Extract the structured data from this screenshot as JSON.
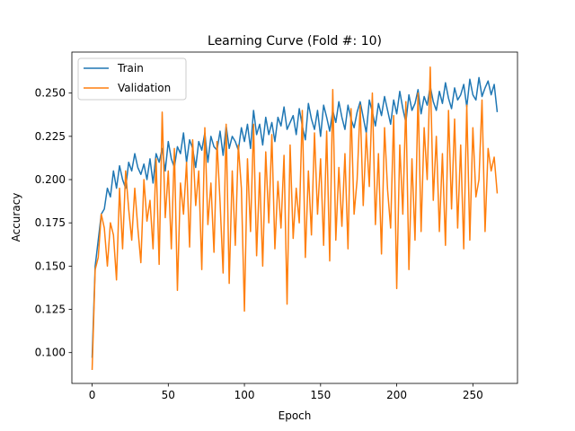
{
  "chart_data": {
    "type": "line",
    "title": "Learning Curve (Fold #: 10)",
    "xlabel": "Epoch",
    "ylabel": "Accuracy",
    "xlim": [
      -13.3,
      279.3
    ],
    "ylim": [
      0.0822,
      0.2737
    ],
    "xticks": [
      0,
      50,
      100,
      150,
      200,
      250
    ],
    "xtick_labels": [
      "0",
      "50",
      "100",
      "150",
      "200",
      "250"
    ],
    "yticks": [
      0.1,
      0.125,
      0.15,
      0.175,
      0.2,
      0.225,
      0.25
    ],
    "ytick_labels": [
      "0.100",
      "0.125",
      "0.150",
      "0.175",
      "0.200",
      "0.225",
      "0.250"
    ],
    "grid": false,
    "legend_position": "top-left",
    "series": [
      {
        "name": "Train",
        "color": "#1f77b4",
        "x": [
          0,
          2,
          4,
          6,
          8,
          10,
          12,
          14,
          16,
          18,
          20,
          22,
          24,
          26,
          28,
          30,
          32,
          34,
          36,
          38,
          40,
          42,
          44,
          46,
          48,
          50,
          52,
          54,
          56,
          58,
          60,
          62,
          64,
          66,
          68,
          70,
          72,
          74,
          76,
          78,
          80,
          82,
          84,
          86,
          88,
          90,
          92,
          94,
          96,
          98,
          100,
          102,
          104,
          106,
          108,
          110,
          112,
          114,
          116,
          118,
          120,
          122,
          124,
          126,
          128,
          130,
          132,
          134,
          136,
          138,
          140,
          142,
          144,
          146,
          148,
          150,
          152,
          154,
          156,
          158,
          160,
          162,
          164,
          166,
          168,
          170,
          172,
          174,
          176,
          178,
          180,
          182,
          184,
          186,
          188,
          190,
          192,
          194,
          196,
          198,
          200,
          202,
          204,
          206,
          208,
          210,
          212,
          214,
          216,
          218,
          220,
          222,
          224,
          226,
          228,
          230,
          232,
          234,
          236,
          238,
          240,
          242,
          244,
          246,
          248,
          250,
          252,
          254,
          256,
          258,
          260,
          262,
          264,
          266
        ],
        "values": [
          0.097,
          0.15,
          0.165,
          0.18,
          0.183,
          0.195,
          0.19,
          0.205,
          0.195,
          0.208,
          0.2,
          0.195,
          0.21,
          0.205,
          0.215,
          0.207,
          0.203,
          0.209,
          0.2,
          0.212,
          0.198,
          0.215,
          0.21,
          0.218,
          0.205,
          0.222,
          0.212,
          0.207,
          0.219,
          0.215,
          0.227,
          0.21,
          0.223,
          0.218,
          0.207,
          0.222,
          0.217,
          0.227,
          0.21,
          0.225,
          0.219,
          0.217,
          0.228,
          0.214,
          0.231,
          0.218,
          0.225,
          0.222,
          0.217,
          0.23,
          0.222,
          0.232,
          0.218,
          0.24,
          0.226,
          0.232,
          0.22,
          0.236,
          0.226,
          0.233,
          0.222,
          0.236,
          0.231,
          0.242,
          0.229,
          0.233,
          0.237,
          0.226,
          0.241,
          0.231,
          0.223,
          0.244,
          0.235,
          0.229,
          0.24,
          0.225,
          0.243,
          0.236,
          0.228,
          0.24,
          0.233,
          0.245,
          0.236,
          0.229,
          0.243,
          0.235,
          0.23,
          0.239,
          0.245,
          0.236,
          0.227,
          0.246,
          0.239,
          0.231,
          0.244,
          0.237,
          0.248,
          0.24,
          0.232,
          0.246,
          0.238,
          0.251,
          0.241,
          0.233,
          0.249,
          0.24,
          0.244,
          0.252,
          0.238,
          0.248,
          0.243,
          0.254,
          0.245,
          0.24,
          0.251,
          0.244,
          0.256,
          0.247,
          0.241,
          0.253,
          0.246,
          0.249,
          0.255,
          0.242,
          0.258,
          0.249,
          0.246,
          0.259,
          0.248,
          0.253,
          0.257,
          0.249,
          0.255,
          0.239
        ]
      },
      {
        "name": "Validation",
        "color": "#ff7f0e",
        "x": [
          0,
          2,
          4,
          6,
          8,
          10,
          12,
          14,
          16,
          18,
          20,
          22,
          24,
          26,
          28,
          30,
          32,
          34,
          36,
          38,
          40,
          42,
          44,
          46,
          48,
          50,
          52,
          54,
          56,
          58,
          60,
          62,
          64,
          66,
          68,
          70,
          72,
          74,
          76,
          78,
          80,
          82,
          84,
          86,
          88,
          90,
          92,
          94,
          96,
          98,
          100,
          102,
          104,
          106,
          108,
          110,
          112,
          114,
          116,
          118,
          120,
          122,
          124,
          126,
          128,
          130,
          132,
          134,
          136,
          138,
          140,
          142,
          144,
          146,
          148,
          150,
          152,
          154,
          156,
          158,
          160,
          162,
          164,
          166,
          168,
          170,
          172,
          174,
          176,
          178,
          180,
          182,
          184,
          186,
          188,
          190,
          192,
          194,
          196,
          198,
          200,
          202,
          204,
          206,
          208,
          210,
          212,
          214,
          216,
          218,
          220,
          222,
          224,
          226,
          228,
          230,
          232,
          234,
          236,
          238,
          240,
          242,
          244,
          246,
          248,
          250,
          252,
          254,
          256,
          258,
          260,
          262,
          264,
          266
        ],
        "values": [
          0.09,
          0.148,
          0.155,
          0.18,
          0.172,
          0.15,
          0.175,
          0.168,
          0.142,
          0.195,
          0.16,
          0.205,
          0.183,
          0.165,
          0.195,
          0.172,
          0.152,
          0.2,
          0.176,
          0.188,
          0.16,
          0.212,
          0.151,
          0.239,
          0.178,
          0.205,
          0.16,
          0.218,
          0.136,
          0.198,
          0.18,
          0.21,
          0.161,
          0.223,
          0.185,
          0.205,
          0.148,
          0.23,
          0.174,
          0.198,
          0.158,
          0.222,
          0.187,
          0.146,
          0.232,
          0.14,
          0.205,
          0.162,
          0.22,
          0.195,
          0.124,
          0.212,
          0.17,
          0.232,
          0.156,
          0.204,
          0.15,
          0.216,
          0.175,
          0.226,
          0.16,
          0.199,
          0.172,
          0.214,
          0.128,
          0.22,
          0.166,
          0.195,
          0.175,
          0.24,
          0.155,
          0.205,
          0.168,
          0.227,
          0.18,
          0.212,
          0.162,
          0.228,
          0.153,
          0.252,
          0.165,
          0.207,
          0.173,
          0.215,
          0.16,
          0.241,
          0.18,
          0.2,
          0.243,
          0.185,
          0.227,
          0.196,
          0.25,
          0.174,
          0.215,
          0.157,
          0.23,
          0.194,
          0.172,
          0.237,
          0.137,
          0.22,
          0.18,
          0.245,
          0.148,
          0.212,
          0.165,
          0.25,
          0.17,
          0.23,
          0.2,
          0.265,
          0.188,
          0.225,
          0.17,
          0.215,
          0.162,
          0.24,
          0.183,
          0.235,
          0.172,
          0.22,
          0.16,
          0.243,
          0.165,
          0.23,
          0.19,
          0.2,
          0.246,
          0.17,
          0.218,
          0.205,
          0.213,
          0.192
        ]
      }
    ]
  }
}
